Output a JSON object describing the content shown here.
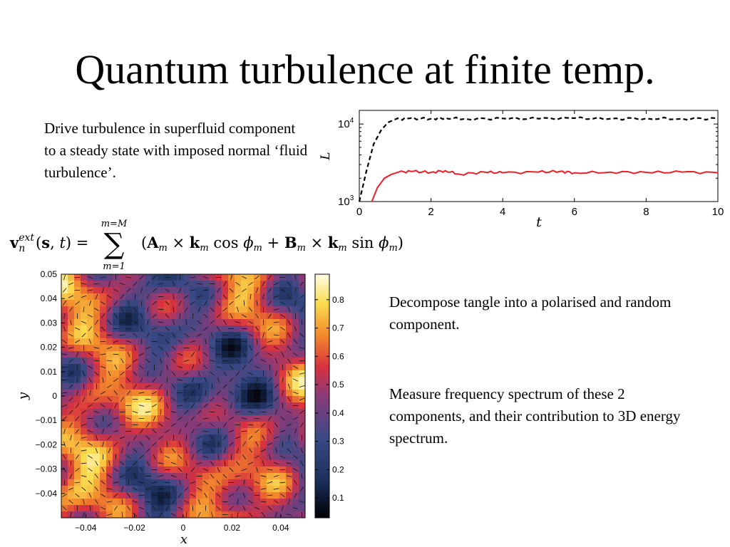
{
  "slide": {
    "title": "Quantum turbulence at finite temp.",
    "text_drive": "Drive turbulence in superfluid component to a steady state with imposed normal ‘fluid turbulence’.",
    "text_decompose": "Decompose tangle into a polarised and random component.",
    "text_measure": "Measure frequency spectrum of these 2 components, and their contribution to 3D energy spectrum."
  },
  "equation": {
    "lhs": "v",
    "lhs_sub": "n",
    "lhs_sup": "ext",
    "args": "(s, t) =",
    "sum_top": "m=M",
    "sum_bottom": "m=1",
    "rhs": "(A",
    "rhs_full": "(A_m × k_m cos φ_m + B_m × k_m sin φ_m)"
  },
  "chart_data": [
    {
      "type": "line",
      "xlabel": "t",
      "ylabel": "L",
      "xlim": [
        0,
        10
      ],
      "ylim_log": [
        1000,
        15000
      ],
      "yscale": "log",
      "x_ticks": [
        "0",
        "2",
        "4",
        "6",
        "8",
        "10"
      ],
      "y_ticks": [
        "10",
        "10"
      ],
      "y_tick_exponents": [
        "4",
        "3"
      ],
      "series": [
        {
          "style": "dashed",
          "color": "#000000",
          "x": [
            0,
            0.2,
            0.4,
            0.6,
            0.8,
            1.0,
            1.4,
            2.0,
            2.4,
            3.0,
            4.0,
            5.0,
            6.0,
            7.0,
            8.0,
            9.0,
            10.0
          ],
          "y": [
            1000,
            2500,
            5500,
            8200,
            10500,
            11500,
            11800,
            11700,
            12000,
            11600,
            11800,
            11700,
            11900,
            11700,
            11800,
            11700,
            11800
          ]
        },
        {
          "style": "solid",
          "color": "#e8202a",
          "x": [
            0.35,
            0.5,
            0.7,
            0.9,
            1.1,
            1.5,
            2.0,
            2.4,
            2.8,
            3.5,
            4.0,
            5.0,
            5.6,
            6.0,
            7.0,
            8.0,
            9.0,
            10.0
          ],
          "y": [
            1000,
            1500,
            2000,
            2250,
            2400,
            2450,
            2380,
            2500,
            2250,
            2400,
            2350,
            2400,
            2450,
            2350,
            2400,
            2380,
            2400,
            2350
          ]
        }
      ]
    },
    {
      "type": "heatmap",
      "xlabel": "x",
      "ylabel": "y",
      "xlim": [
        -0.05,
        0.05
      ],
      "ylim": [
        -0.05,
        0.05
      ],
      "x_ticks": [
        "−0.04",
        "−0.02",
        "0",
        "0.02",
        "0.04"
      ],
      "y_ticks": [
        "0.05",
        "0.04",
        "0.03",
        "0.02",
        "0.01",
        "0",
        "−0.01",
        "−0.02",
        "−0.03",
        "−0.04"
      ],
      "colorbar_ticks": [
        "0.8",
        "0.7",
        "0.6",
        "0.5",
        "0.4",
        "0.3",
        "0.2",
        "0.1"
      ],
      "colorbar_range": [
        0.03,
        0.89
      ],
      "colormap": [
        "#000004",
        "#1b2f5a",
        "#3a4a86",
        "#8a3a78",
        "#d8323e",
        "#f28a2c",
        "#fadc4e",
        "#fffde6"
      ]
    }
  ]
}
